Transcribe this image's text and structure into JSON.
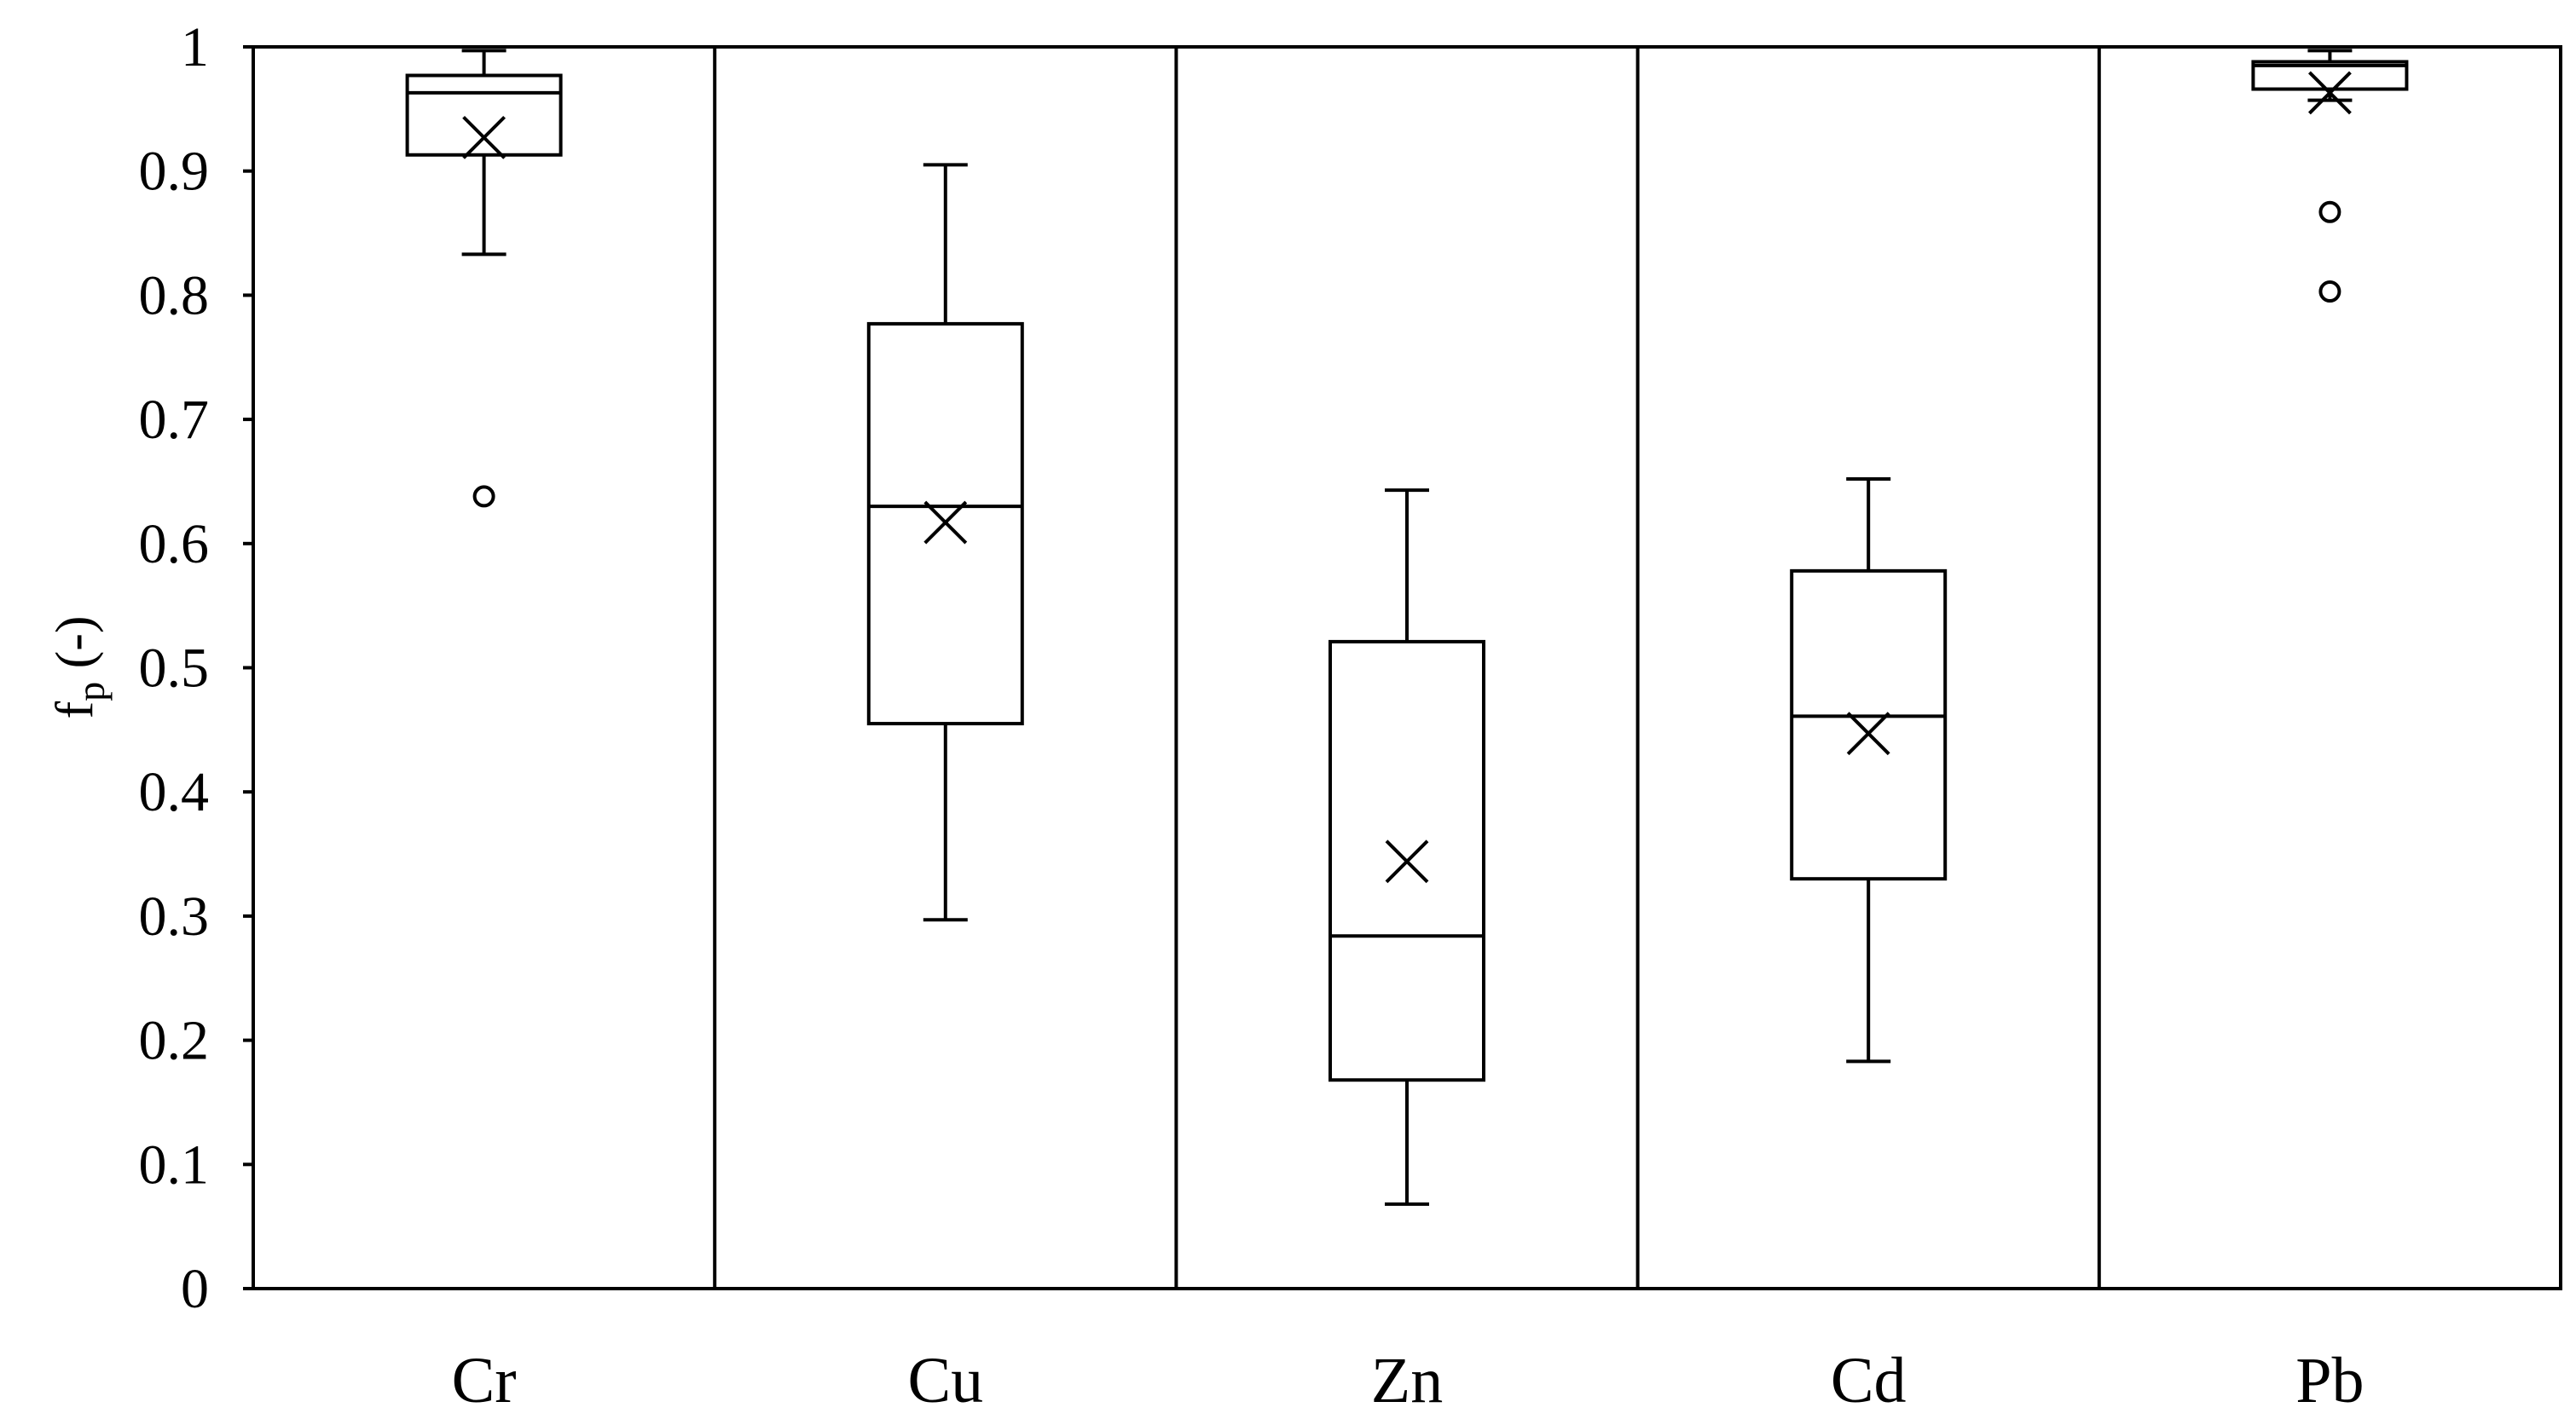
{
  "chart_data": {
    "type": "box",
    "title": "",
    "xlabel": "",
    "ylabel": "f",
    "ylabel_sub": "p",
    "ylabel_suffix": " (-)",
    "ylim": [
      0,
      1
    ],
    "yticks": [
      0,
      0.1,
      0.2,
      0.3,
      0.4,
      0.5,
      0.6,
      0.7,
      0.8,
      0.9,
      1
    ],
    "ytick_labels": [
      "0",
      "0.1",
      "0.2",
      "0.3",
      "0.4",
      "0.5",
      "0.6",
      "0.7",
      "0.8",
      "0.9",
      "1"
    ],
    "grid": false,
    "separators_between_categories": true,
    "categories": [
      "Cr",
      "Cu",
      "Zn",
      "Cd",
      "Pb"
    ],
    "boxes": [
      {
        "category": "Cr",
        "whisker_low": 0.833,
        "q1": 0.913,
        "median": 0.963,
        "q3": 0.977,
        "whisker_high": 0.997,
        "mean": 0.927,
        "outliers": [
          0.638
        ]
      },
      {
        "category": "Cu",
        "whisker_low": 0.297,
        "q1": 0.455,
        "median": 0.63,
        "q3": 0.777,
        "whisker_high": 0.905,
        "mean": 0.617,
        "outliers": []
      },
      {
        "category": "Zn",
        "whisker_low": 0.068,
        "q1": 0.168,
        "median": 0.284,
        "q3": 0.521,
        "whisker_high": 0.643,
        "mean": 0.344,
        "outliers": []
      },
      {
        "category": "Cd",
        "whisker_low": 0.183,
        "q1": 0.33,
        "median": 0.461,
        "q3": 0.578,
        "whisker_high": 0.652,
        "mean": 0.447,
        "outliers": []
      },
      {
        "category": "Pb",
        "whisker_low": 0.957,
        "q1": 0.966,
        "median": 0.985,
        "q3": 0.988,
        "whisker_high": 0.997,
        "mean": 0.963,
        "outliers": [
          0.867,
          0.803
        ]
      }
    ]
  }
}
